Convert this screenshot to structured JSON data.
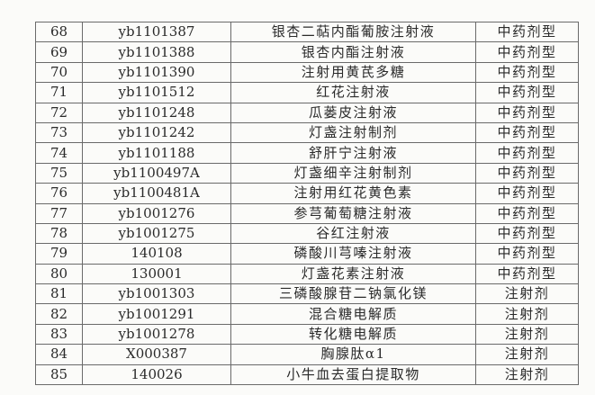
{
  "rows": [
    {
      "no": "68",
      "code": "yb1101387",
      "name": "银杏二萜内酯葡胺注射液",
      "type": "中药剂型"
    },
    {
      "no": "69",
      "code": "yb1101388",
      "name": "银杏内酯注射液",
      "type": "中药剂型"
    },
    {
      "no": "70",
      "code": "yb1101390",
      "name": "注射用黄芪多糖",
      "type": "中药剂型"
    },
    {
      "no": "71",
      "code": "yb1101512",
      "name": "红花注射液",
      "type": "中药剂型"
    },
    {
      "no": "72",
      "code": "yb1101248",
      "name": "瓜蒌皮注射液",
      "type": "中药剂型"
    },
    {
      "no": "73",
      "code": "yb1101242",
      "name": "灯盏注射制剂",
      "type": "中药剂型"
    },
    {
      "no": "74",
      "code": "yb1101188",
      "name": "舒肝宁注射液",
      "type": "中药剂型"
    },
    {
      "no": "75",
      "code": "yb1100497A",
      "name": "灯盏细辛注射制剂",
      "type": "中药剂型"
    },
    {
      "no": "76",
      "code": "yb1100481A",
      "name": "注射用红花黄色素",
      "type": "中药剂型"
    },
    {
      "no": "77",
      "code": "yb1001276",
      "name": "参芎葡萄糖注射液",
      "type": "中药剂型"
    },
    {
      "no": "78",
      "code": "yb1001275",
      "name": "谷红注射液",
      "type": "中药剂型"
    },
    {
      "no": "79",
      "code": "140108",
      "name": "磷酸川芎嗪注射液",
      "type": "中药剂型"
    },
    {
      "no": "80",
      "code": "130001",
      "name": "灯盏花素注射液",
      "type": "中药剂型"
    },
    {
      "no": "81",
      "code": "yb1001303",
      "name": "三磷酸腺苷二钠氯化镁",
      "type": "注射剂"
    },
    {
      "no": "82",
      "code": "yb1001291",
      "name": "混合糖电解质",
      "type": "注射剂"
    },
    {
      "no": "83",
      "code": "yb1001278",
      "name": "转化糖电解质",
      "type": "注射剂"
    },
    {
      "no": "84",
      "code": "X000387",
      "name": "胸腺肽α1",
      "type": "注射剂"
    },
    {
      "no": "85",
      "code": "140026",
      "name": "小牛血去蛋白提取物",
      "type": "注射剂"
    }
  ]
}
